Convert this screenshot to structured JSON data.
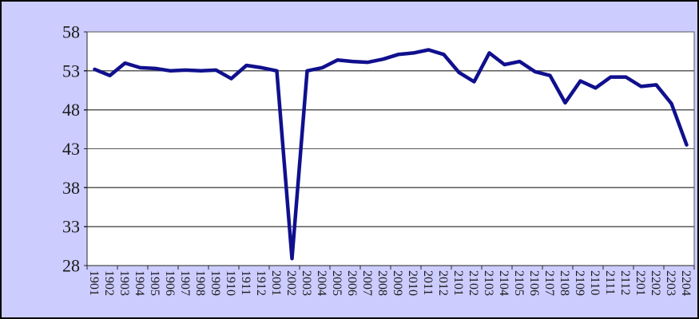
{
  "window": {
    "background_color": "#CCCCFF",
    "border_color": "#000000"
  },
  "chart_data": {
    "type": "line",
    "title": "",
    "xlabel": "",
    "ylabel": "",
    "categories": [
      "1901",
      "1902",
      "1903",
      "1904",
      "1905",
      "1906",
      "1907",
      "1908",
      "1909",
      "1910",
      "1911",
      "1912",
      "2001",
      "2002",
      "2003",
      "2004",
      "2005",
      "2006",
      "2007",
      "2008",
      "2009",
      "2010",
      "2011",
      "2012",
      "2101",
      "2102",
      "2103",
      "2104",
      "2105",
      "2106",
      "2107",
      "2108",
      "2109",
      "2110",
      "2111",
      "2112",
      "2201",
      "2202",
      "2203",
      "2204"
    ],
    "values": [
      53.2,
      52.4,
      54.0,
      53.4,
      53.3,
      53.0,
      53.1,
      53.0,
      53.1,
      52.0,
      53.7,
      53.4,
      53.0,
      28.9,
      53.0,
      53.4,
      54.4,
      54.2,
      54.1,
      54.5,
      55.1,
      55.3,
      55.7,
      55.1,
      52.8,
      51.6,
      55.3,
      53.8,
      54.2,
      52.9,
      52.4,
      48.9,
      51.7,
      50.8,
      52.2,
      52.2,
      51.0,
      51.2,
      48.8,
      43.5
    ],
    "ylim": [
      28,
      58
    ],
    "yticks": [
      28,
      33,
      38,
      43,
      48,
      53,
      58
    ],
    "x_tick_interval": 2,
    "x_label_rotation_deg": 90,
    "grid": true,
    "legend": false,
    "line_color": "#10108E",
    "line_width": 4.5,
    "plot_bg": "#FFFFFF",
    "grid_color": "#595959",
    "axis_color": "#262626",
    "label_color": "#1A1A1A"
  }
}
